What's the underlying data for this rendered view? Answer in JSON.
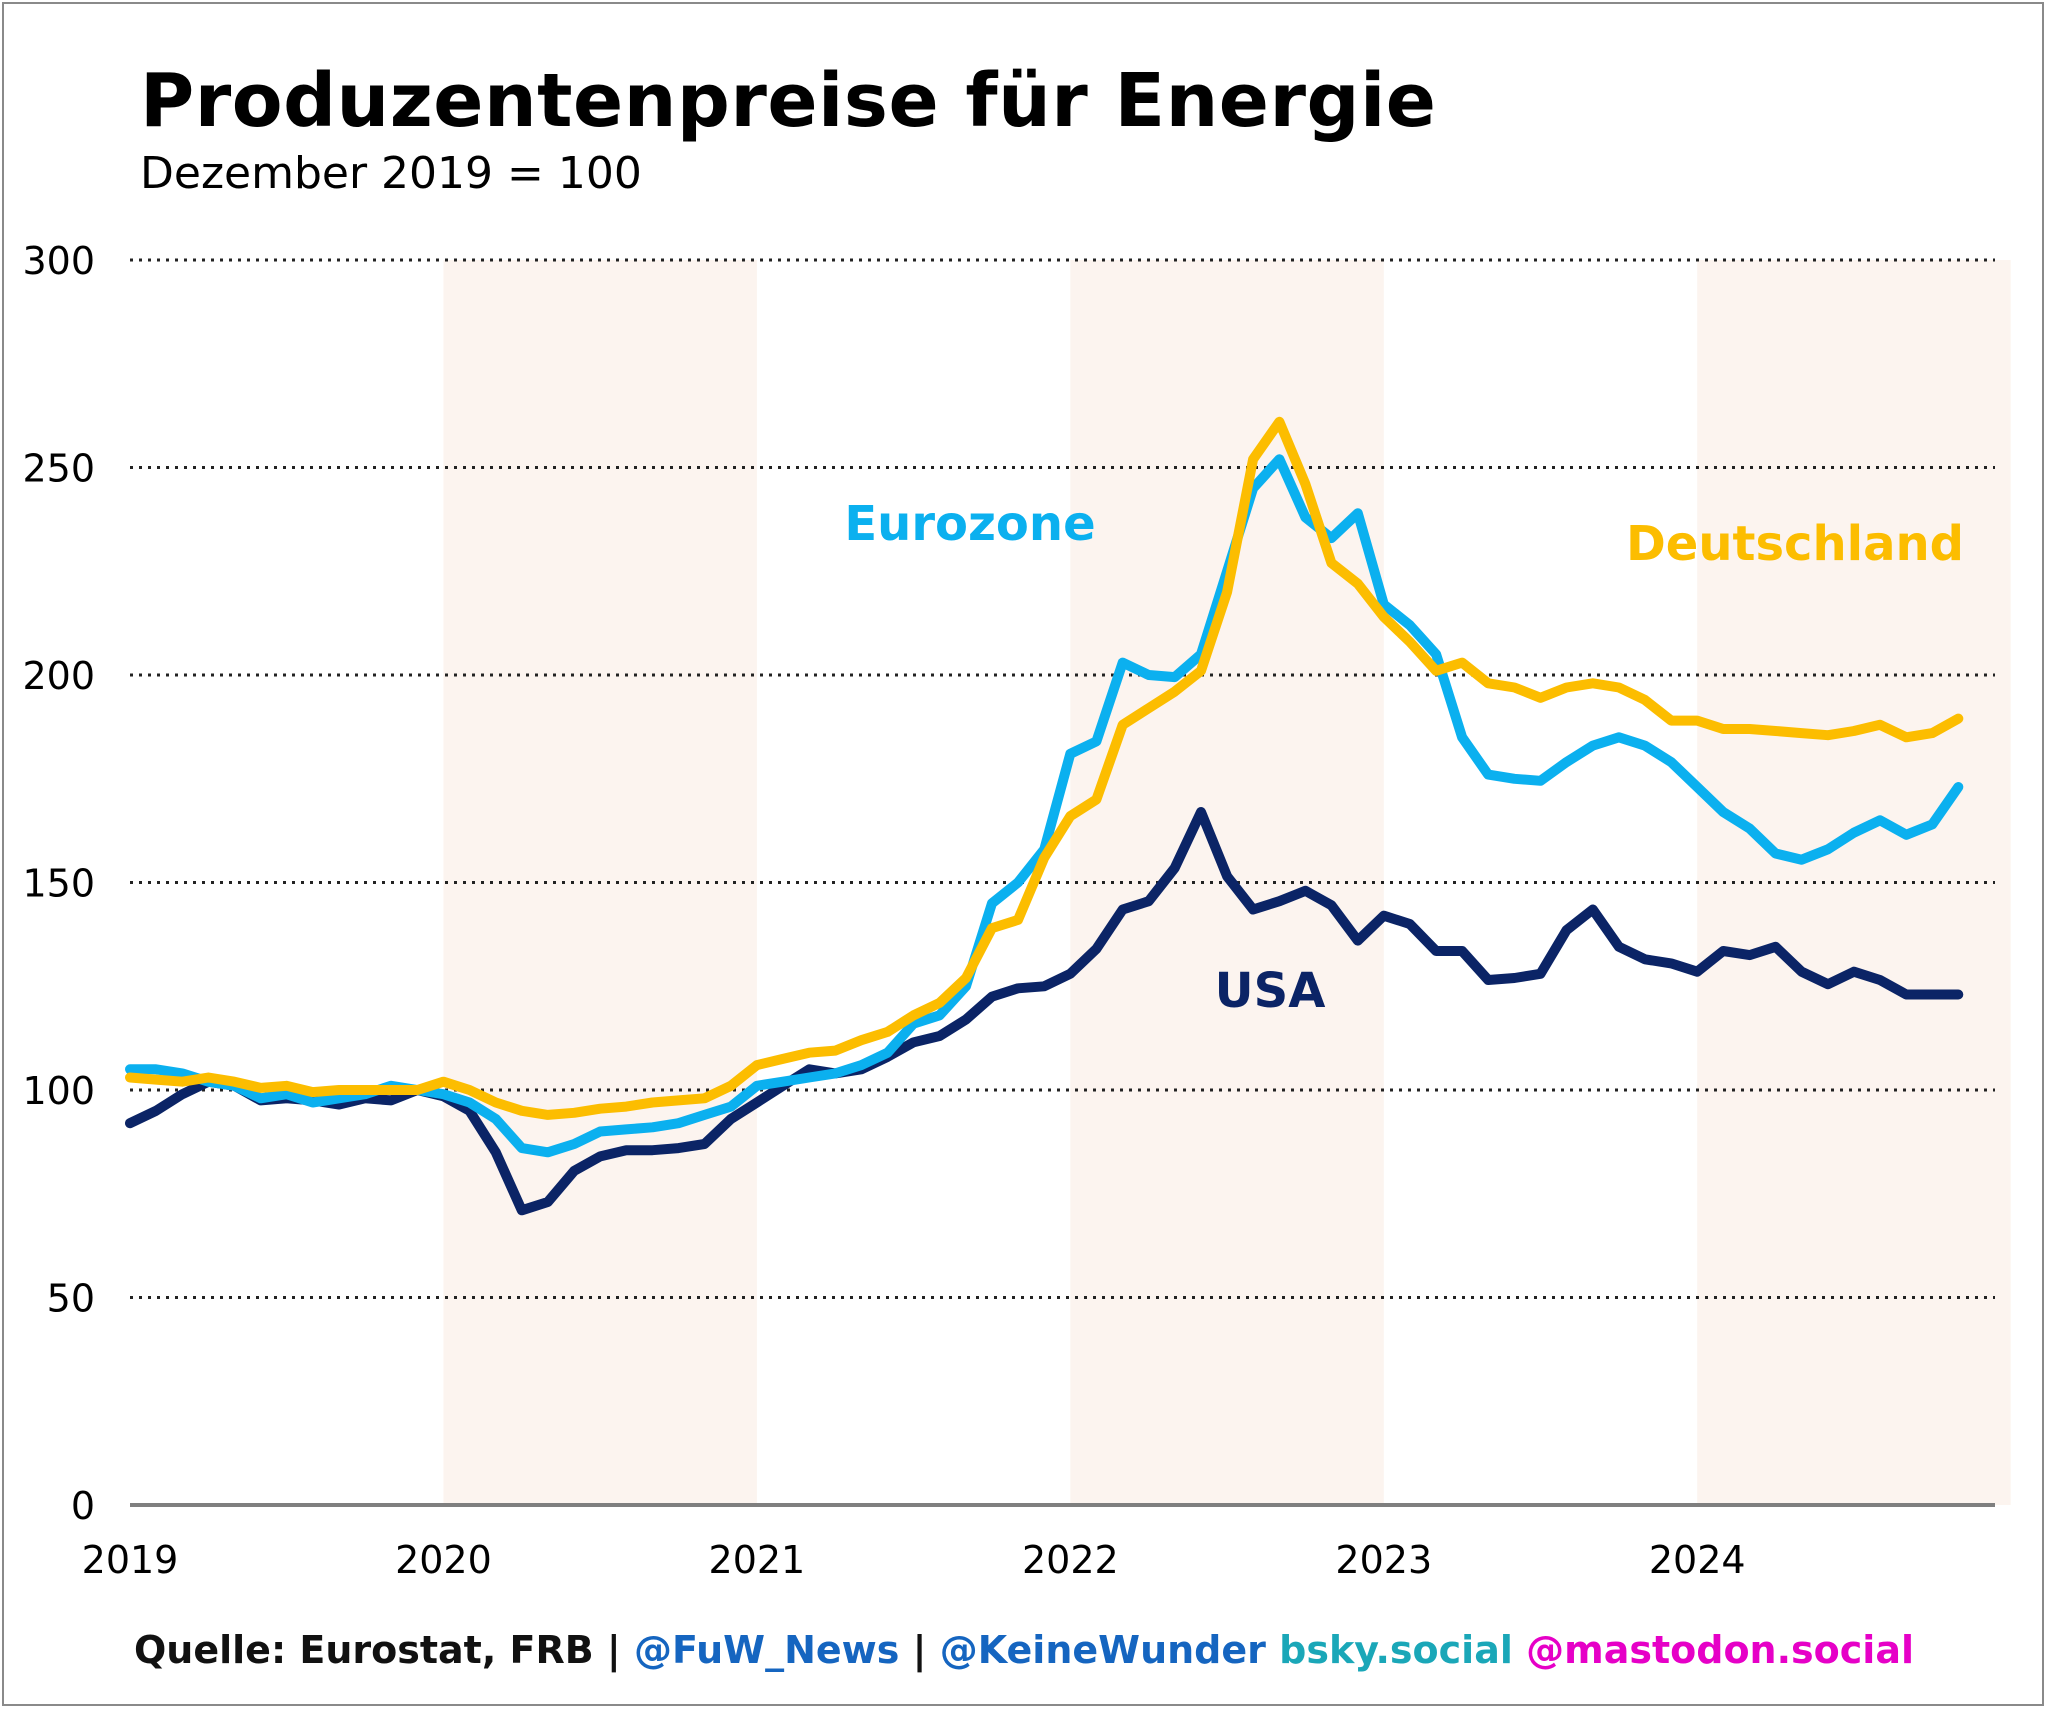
{
  "title": "Produzentenpreise für Energie",
  "subtitle": "Dezember 2019 = 100",
  "footer": {
    "source": "Quelle: Eurostat, FRB",
    "sep1": "|",
    "handle1": "@FuW_News",
    "sep2": "|",
    "handle2": "@KeineWunder",
    "bsky": "bsky.social",
    "mastodon": "@mastodon.social"
  },
  "colors": {
    "eurozone": "#0bb0ef",
    "deutschland": "#fcbd00",
    "usa": "#0b2466",
    "band": "#fcf4ef",
    "grid": "#222222",
    "footer_black": "#111111",
    "footer_blue": "#1565c0",
    "footer_teal": "#1aa7b8",
    "footer_magenta": "#e600c7"
  },
  "chart_data": {
    "type": "line",
    "title": "Produzentenpreise für Energie",
    "subtitle": "Dezember 2019 = 100",
    "xlabel": "",
    "ylabel": "",
    "ylim": [
      0,
      300
    ],
    "xlim": [
      2019.0,
      2024.95
    ],
    "y_ticks": [
      0,
      50,
      100,
      150,
      200,
      250,
      300
    ],
    "x_ticks": [
      "2019",
      "2020",
      "2021",
      "2022",
      "2023",
      "2024"
    ],
    "grid": "horizontal dotted",
    "shaded_years": [
      "2020",
      "2022",
      "2024"
    ],
    "x": [
      2019.0,
      2019.083,
      2019.167,
      2019.25,
      2019.333,
      2019.417,
      2019.5,
      2019.583,
      2019.667,
      2019.75,
      2019.833,
      2019.917,
      2020.0,
      2020.083,
      2020.167,
      2020.25,
      2020.333,
      2020.417,
      2020.5,
      2020.583,
      2020.667,
      2020.75,
      2020.833,
      2020.917,
      2021.0,
      2021.083,
      2021.167,
      2021.25,
      2021.333,
      2021.417,
      2021.5,
      2021.583,
      2021.667,
      2021.75,
      2021.833,
      2021.917,
      2022.0,
      2022.083,
      2022.167,
      2022.25,
      2022.333,
      2022.417,
      2022.5,
      2022.583,
      2022.667,
      2022.75,
      2022.833,
      2022.917,
      2023.0,
      2023.083,
      2023.167,
      2023.25,
      2023.333,
      2023.417,
      2023.5,
      2023.583,
      2023.667,
      2023.75,
      2023.833,
      2023.917,
      2024.0,
      2024.083,
      2024.167,
      2024.25,
      2024.333,
      2024.417,
      2024.5,
      2024.583,
      2024.667,
      2024.75,
      2024.833
    ],
    "series": [
      {
        "name": "Eurozone",
        "label": "Eurozone",
        "color": "#0bb0ef",
        "values": [
          105,
          105,
          104,
          102,
          101,
          98,
          99,
          97,
          98,
          99,
          101,
          100,
          99,
          97,
          93,
          86,
          85,
          87,
          90,
          90.5,
          91,
          92,
          94,
          96,
          101,
          102,
          103,
          104,
          106,
          109,
          116,
          118,
          125,
          145,
          150,
          158,
          181,
          184,
          203,
          200,
          199.5,
          205,
          225,
          245,
          252,
          238,
          233,
          239,
          217,
          212,
          205,
          185,
          176,
          175,
          174.5,
          179,
          183,
          185,
          183,
          179,
          173,
          167,
          163,
          157,
          155.5,
          158,
          162,
          165,
          161.5,
          164,
          173
        ]
      },
      {
        "name": "Deutschland",
        "label": "Deutschland",
        "color": "#fcbd00",
        "values": [
          103,
          102.5,
          102,
          103,
          102,
          100.5,
          101,
          99.5,
          100,
          100,
          100,
          100,
          102,
          100,
          97,
          95,
          94,
          94.5,
          95.5,
          96,
          97,
          97.5,
          98,
          101,
          106,
          107.5,
          109,
          109.5,
          112,
          114,
          118,
          121,
          127,
          139,
          141,
          156,
          166,
          170,
          188,
          192,
          196,
          201,
          220,
          252,
          261,
          246,
          227,
          222,
          214,
          208,
          201,
          203,
          198,
          197,
          194.5,
          197,
          198,
          197,
          194,
          189,
          189,
          187,
          187,
          186.5,
          186,
          185.5,
          186.5,
          188,
          185,
          186,
          189.5
        ]
      },
      {
        "name": "USA",
        "label": "USA",
        "color": "#0b2466",
        "values": [
          92,
          95,
          99,
          102,
          101,
          97.5,
          98,
          97.5,
          96.5,
          98,
          97.5,
          100,
          98.5,
          95,
          85,
          71,
          73,
          80.5,
          84,
          85.5,
          85.5,
          86,
          87,
          93,
          97,
          101,
          105,
          104,
          105,
          108,
          111.5,
          113,
          117,
          122.5,
          124.5,
          125,
          128,
          134,
          143.5,
          145.5,
          153.5,
          167,
          151.5,
          143.5,
          145.5,
          148,
          144.5,
          136,
          142,
          140,
          133.5,
          133.5,
          126.5,
          127,
          128,
          138.5,
          143.5,
          134.5,
          131.5,
          130.5,
          128.5,
          133.5,
          132.5,
          134.5,
          128.5,
          125.5,
          128.5,
          126.5,
          123,
          123,
          123
        ]
      }
    ],
    "annotations": [
      {
        "text": "Eurozone",
        "series": "Eurozone"
      },
      {
        "text": "Deutschland",
        "series": "Deutschland"
      },
      {
        "text": "USA",
        "series": "USA"
      }
    ]
  }
}
